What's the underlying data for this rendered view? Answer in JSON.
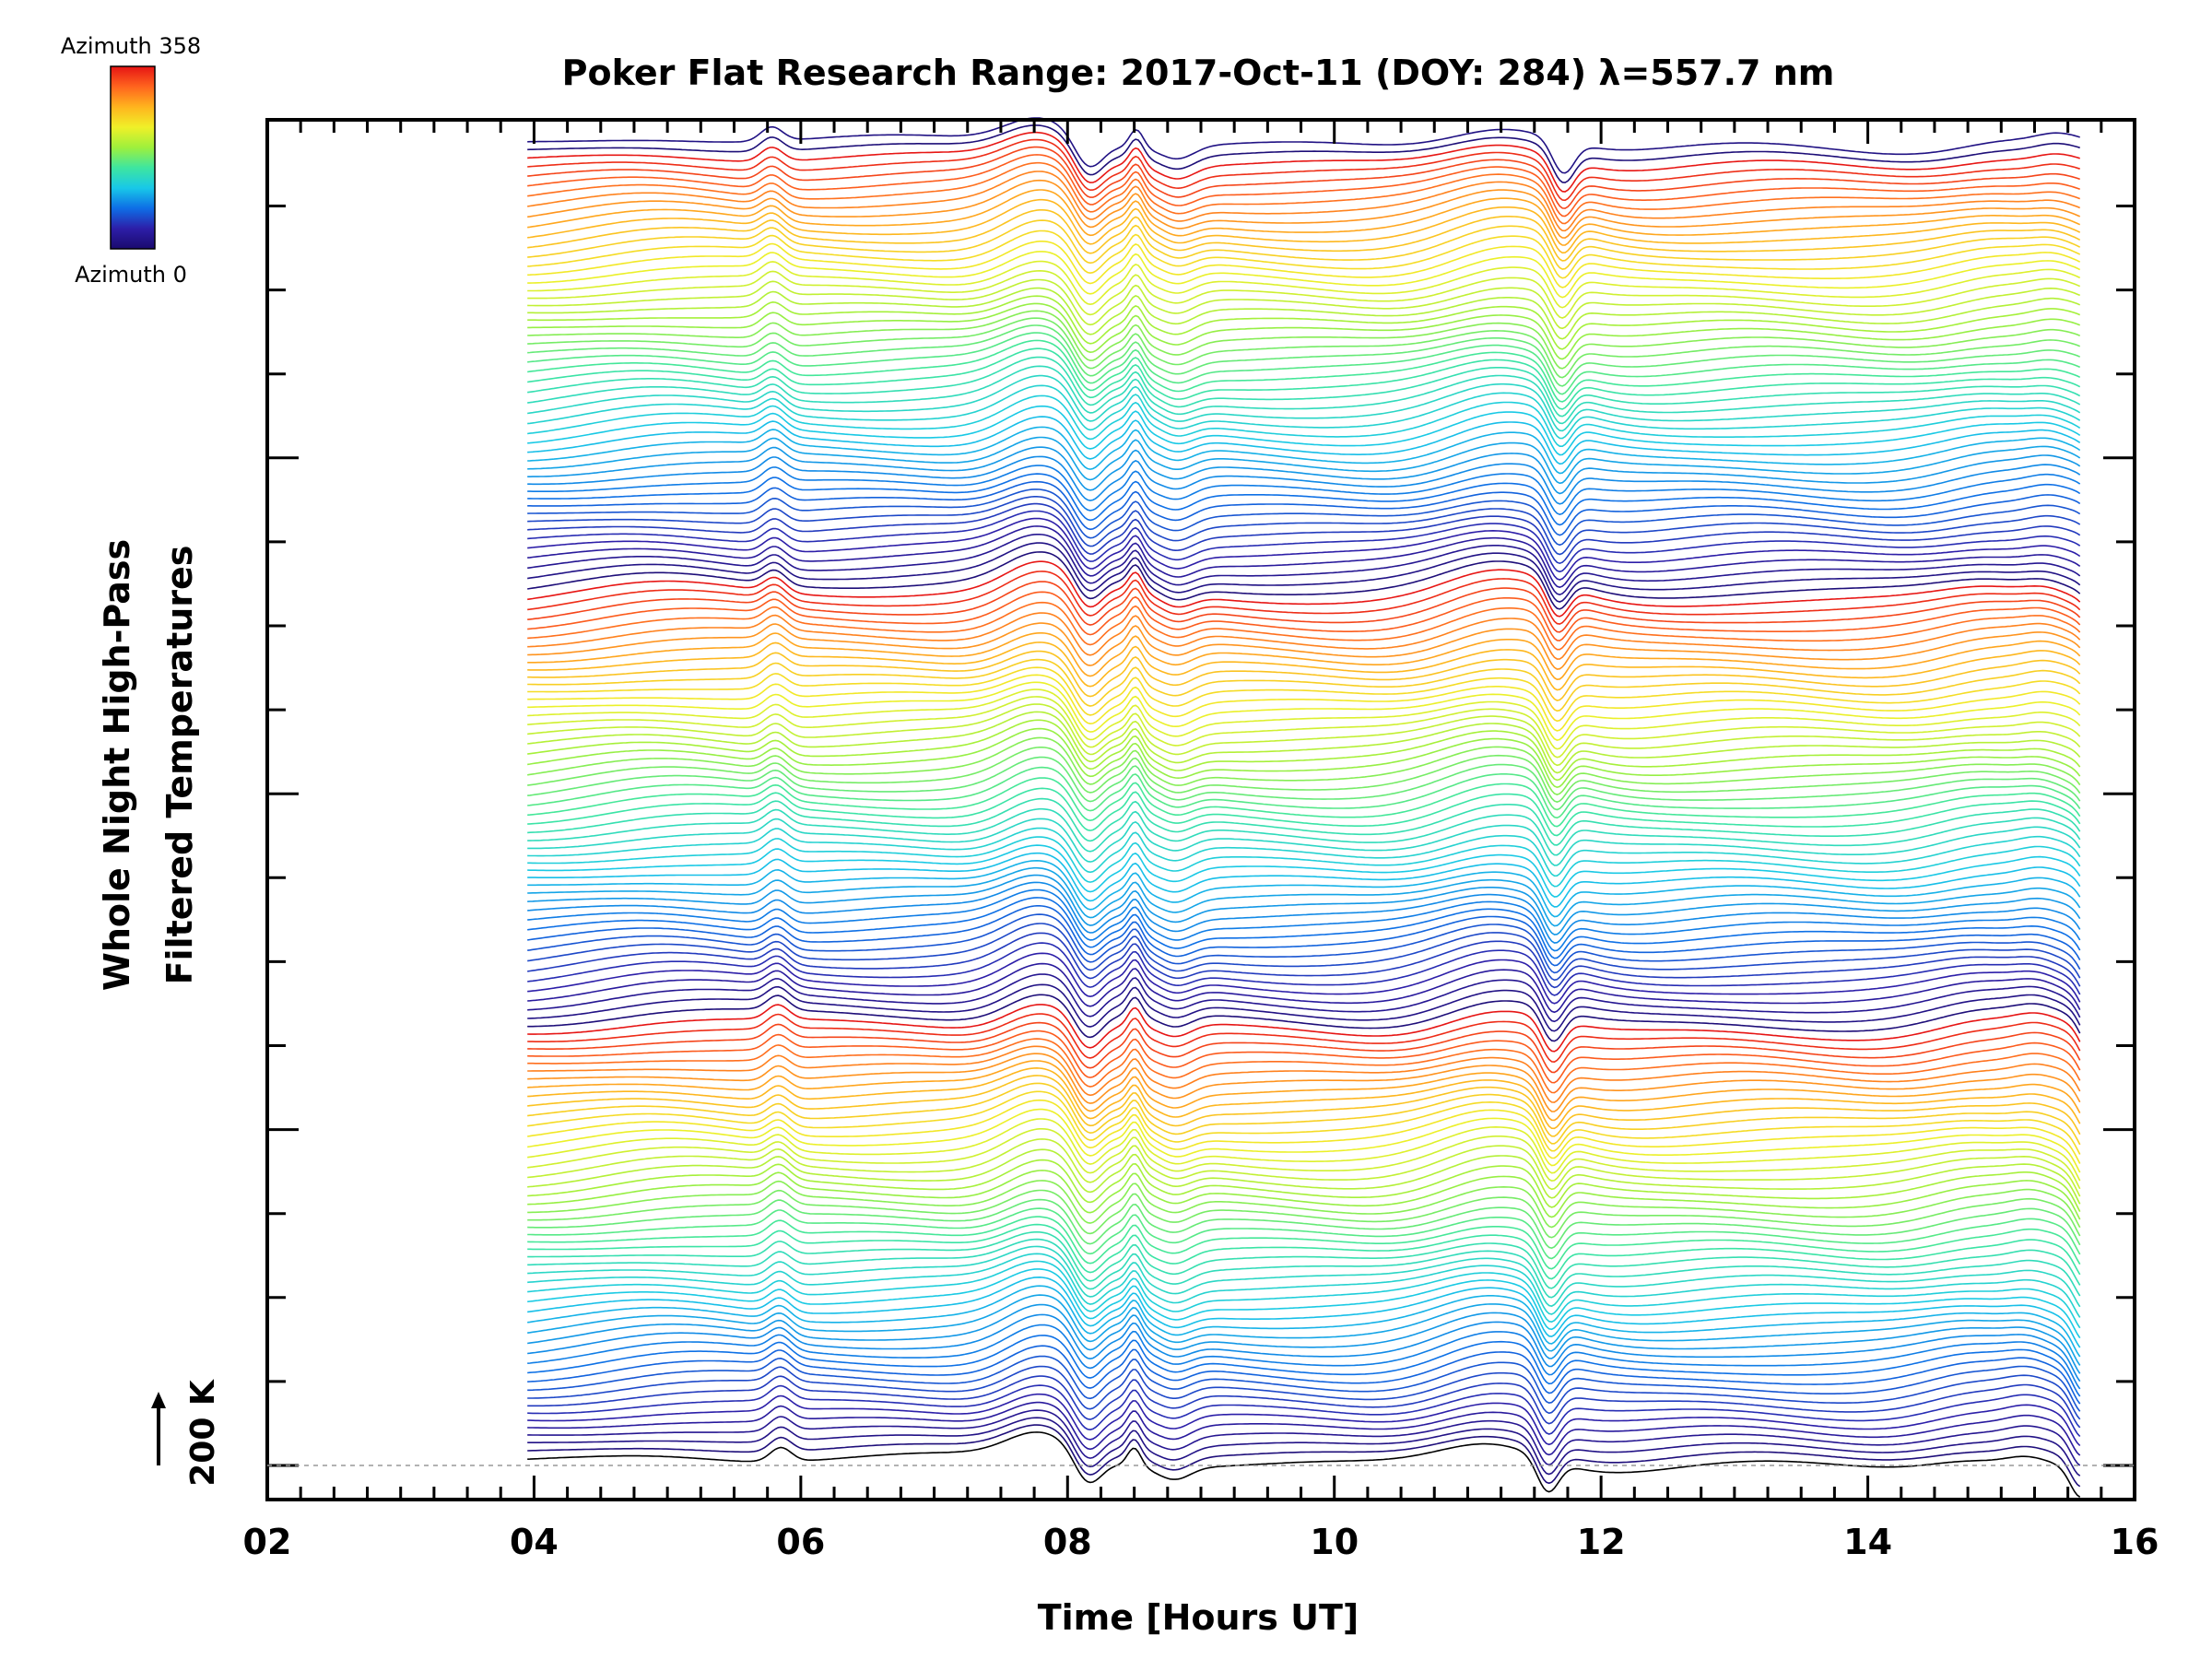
{
  "chart_data": {
    "type": "line",
    "title": "Poker Flat Research Range: 2017-Oct-11 (DOY: 284) λ=557.7 nm",
    "xlabel": "Time [Hours UT]",
    "ylabel_line1": "Whole Night High-Pass",
    "ylabel_line2": "Filtered Temperatures",
    "xlim": [
      2,
      16
    ],
    "x_ticks": [
      "02",
      "04",
      "06",
      "08",
      "10",
      "12",
      "14",
      "16"
    ],
    "scale_bar_label": "200 K",
    "data_start_hour": 3.95,
    "data_end_hour": 15.6,
    "num_traces": 150,
    "azimuth_min": 0,
    "azimuth_max": 358,
    "colorbar": {
      "top_label": "Azimuth 358",
      "bottom_label": "Azimuth 0",
      "colors": [
        "#1a0a6e",
        "#2d1ea8",
        "#0e6ee6",
        "#18c8e8",
        "#3ee6a0",
        "#9ef03c",
        "#f0f028",
        "#ffb41e",
        "#ff641e",
        "#e61414"
      ]
    },
    "grid": false
  }
}
